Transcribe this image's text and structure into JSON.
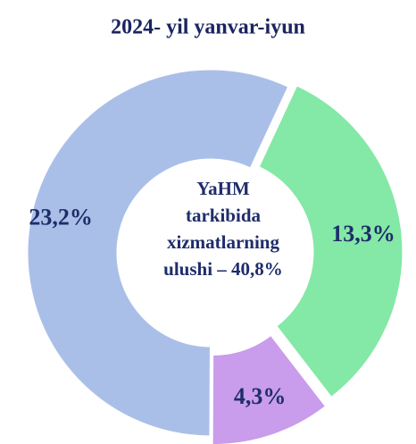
{
  "chart_data": {
    "type": "donut",
    "title": "2024- yil yanvar-iyun",
    "categories": [
      null,
      null,
      null
    ],
    "values": [
      13.3,
      4.3,
      23.2
    ],
    "value_labels": [
      "13,3%",
      "4,3%",
      "23,2%"
    ],
    "colors": [
      "#84e8a6",
      "#c99cec",
      "#aabfe8"
    ],
    "center_text": [
      "YaHM",
      "tarkibida",
      "xizmatlarning",
      "ulushi – 40,8%"
    ]
  }
}
